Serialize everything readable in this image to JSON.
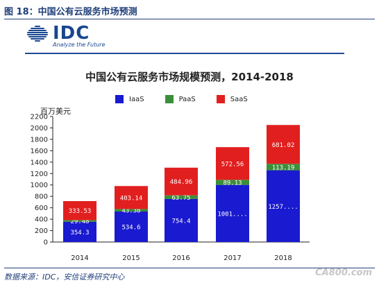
{
  "figure": {
    "caption": "图 18：中国公有云服务市场预测",
    "source": "数据来源：IDC，安信证券研究中心",
    "watermark": "CA800.com"
  },
  "logo": {
    "text": "IDC",
    "tagline": "Analyze the Future",
    "color": "#18468e"
  },
  "chart_data": {
    "type": "bar",
    "stacked": true,
    "title": "中国公有云服务市场规模预测，2014-2018",
    "ylabel": "百万美元",
    "xlabel": "",
    "categories": [
      "2014",
      "2015",
      "2016",
      "2017",
      "2018"
    ],
    "series": [
      {
        "name": "IaaS",
        "color": "#1a1ad0",
        "values": [
          354.3,
          534.6,
          754.4,
          1001,
          1257
        ],
        "labels": [
          "354.3",
          "534.6",
          "754.4",
          "1001....",
          "1257...."
        ]
      },
      {
        "name": "PaaS",
        "color": "#3b8f3a",
        "values": [
          29.48,
          43.38,
          63.75,
          89.13,
          113.19
        ],
        "labels": [
          "29.48",
          "43.38",
          "63.75",
          "89.13",
          "113.19"
        ]
      },
      {
        "name": "SaaS",
        "color": "#e21f1f",
        "values": [
          333.53,
          403.14,
          484.96,
          572.56,
          681.02
        ],
        "labels": [
          "333.53",
          "403.14",
          "484.96",
          "572.56",
          "681.02"
        ]
      }
    ],
    "yticks": [
      0,
      200,
      400,
      600,
      800,
      1000,
      1200,
      1400,
      1600,
      1800,
      2000,
      2200
    ],
    "ylim": [
      0,
      2200
    ],
    "grid": false,
    "legend_position": "top"
  }
}
